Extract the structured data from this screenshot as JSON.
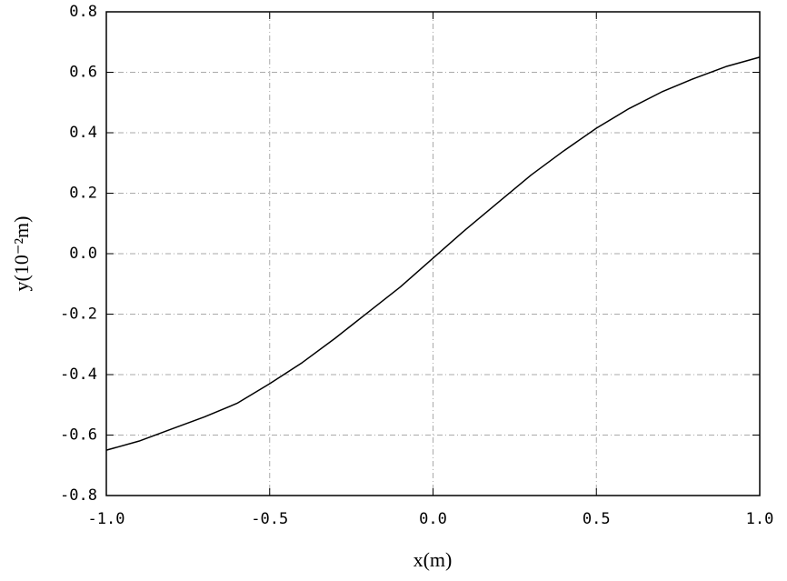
{
  "chart_data": {
    "type": "line",
    "x_label": "x(m)",
    "y_label": "y(10⁻²m)",
    "x": [
      -1,
      -0.9,
      -0.8,
      -0.7,
      -0.6,
      -0.5,
      -0.4,
      -0.3,
      -0.2,
      -0.1,
      0,
      0.1,
      0.2,
      0.3,
      0.4,
      0.5,
      0.6,
      0.7,
      0.8,
      0.9,
      1
    ],
    "series": [
      {
        "color": "#000000",
        "values": [
          -0.65,
          -0.62,
          -0.58,
          -0.54,
          -0.495,
          -0.43,
          -0.36,
          -0.28,
          -0.195,
          -0.11,
          -0.015,
          0.08,
          0.17,
          0.26,
          0.34,
          0.415,
          0.48,
          0.535,
          0.58,
          0.62,
          0.65
        ]
      }
    ],
    "xlim": [
      -1,
      1
    ],
    "xticks": [
      {
        "value": -1,
        "label": "-1.0"
      },
      -0.5,
      {
        "value": 0,
        "label": "0.0"
      },
      0.5,
      {
        "value": 1,
        "label": "1.0"
      }
    ],
    "ylim": [
      -0.8,
      0.8
    ],
    "yticks": [
      -0.8,
      -0.6,
      -0.4,
      -0.2,
      {
        "value": 0,
        "label": "0.0"
      },
      0.2,
      0.4,
      0.6,
      0.8
    ],
    "grid": true
  }
}
